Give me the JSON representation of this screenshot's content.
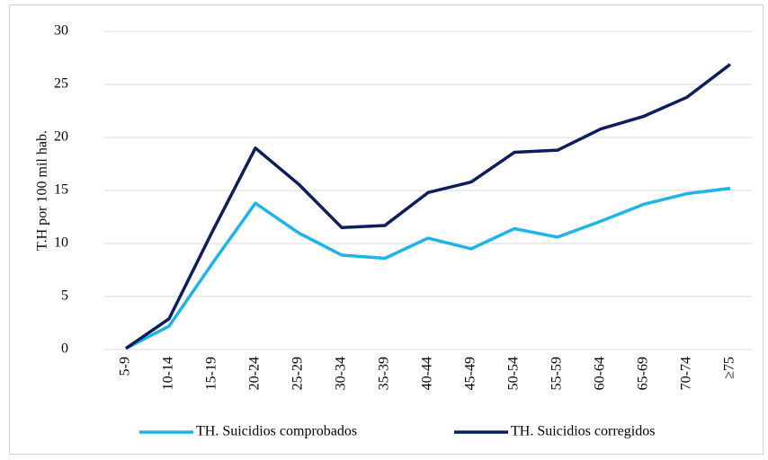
{
  "chart_data": {
    "type": "line",
    "y_label": "T.H por 100 mil hab.",
    "categories": [
      "5-9",
      "10-14",
      "15-19",
      "20-24",
      "25-29",
      "30-34",
      "35-39",
      "40-44",
      "45-49",
      "50-54",
      "55-59",
      "60-64",
      "65-69",
      "70-74",
      "≥75"
    ],
    "series": [
      {
        "name": "TH. Suicidios comprobados",
        "color": "#1eb4ea",
        "values": [
          0.1,
          2.2,
          8.1,
          13.8,
          11.0,
          8.9,
          8.6,
          10.5,
          9.5,
          11.4,
          10.6,
          12.1,
          13.7,
          14.7,
          15.2
        ]
      },
      {
        "name": "TH. Suicidios corregidos",
        "color": "#0b1f5c",
        "values": [
          0.1,
          2.9,
          11.1,
          19.0,
          15.6,
          11.5,
          11.7,
          14.8,
          15.8,
          18.6,
          18.8,
          20.8,
          22.0,
          23.8,
          26.9
        ]
      }
    ],
    "ylim": [
      0,
      30
    ],
    "yticks": [
      0,
      5,
      10,
      15,
      20,
      25,
      30
    ],
    "grid": true,
    "legend": "bottom"
  }
}
